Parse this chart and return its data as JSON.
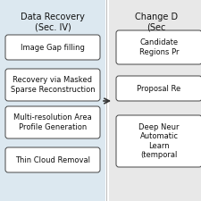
{
  "left_panel_title": "Data Recovery\n(Sec. IV)",
  "left_panel_bg": "#dce8f0",
  "left_boxes": [
    "Image Gap filling",
    "Recovery via Masked\nSparse Reconstruction",
    "Multi-resolution Area\nProfile Generation",
    "Thin Cloud Removal"
  ],
  "right_panel_title": "Change D\n(Sec",
  "right_panel_bg": "#e8e8e8",
  "right_boxes": [
    "Candidate\nRegions Pr",
    "Proposal Re",
    "Deep Neur\nAutomatic\nLearn\n(temporal"
  ],
  "box_fill": "#ffffff",
  "box_edge": "#444444",
  "arrow_color": "#333333",
  "text_color": "#111111",
  "fig_bg": "#ffffff",
  "fig_width": 2.25,
  "fig_height": 2.25,
  "dpi": 100
}
